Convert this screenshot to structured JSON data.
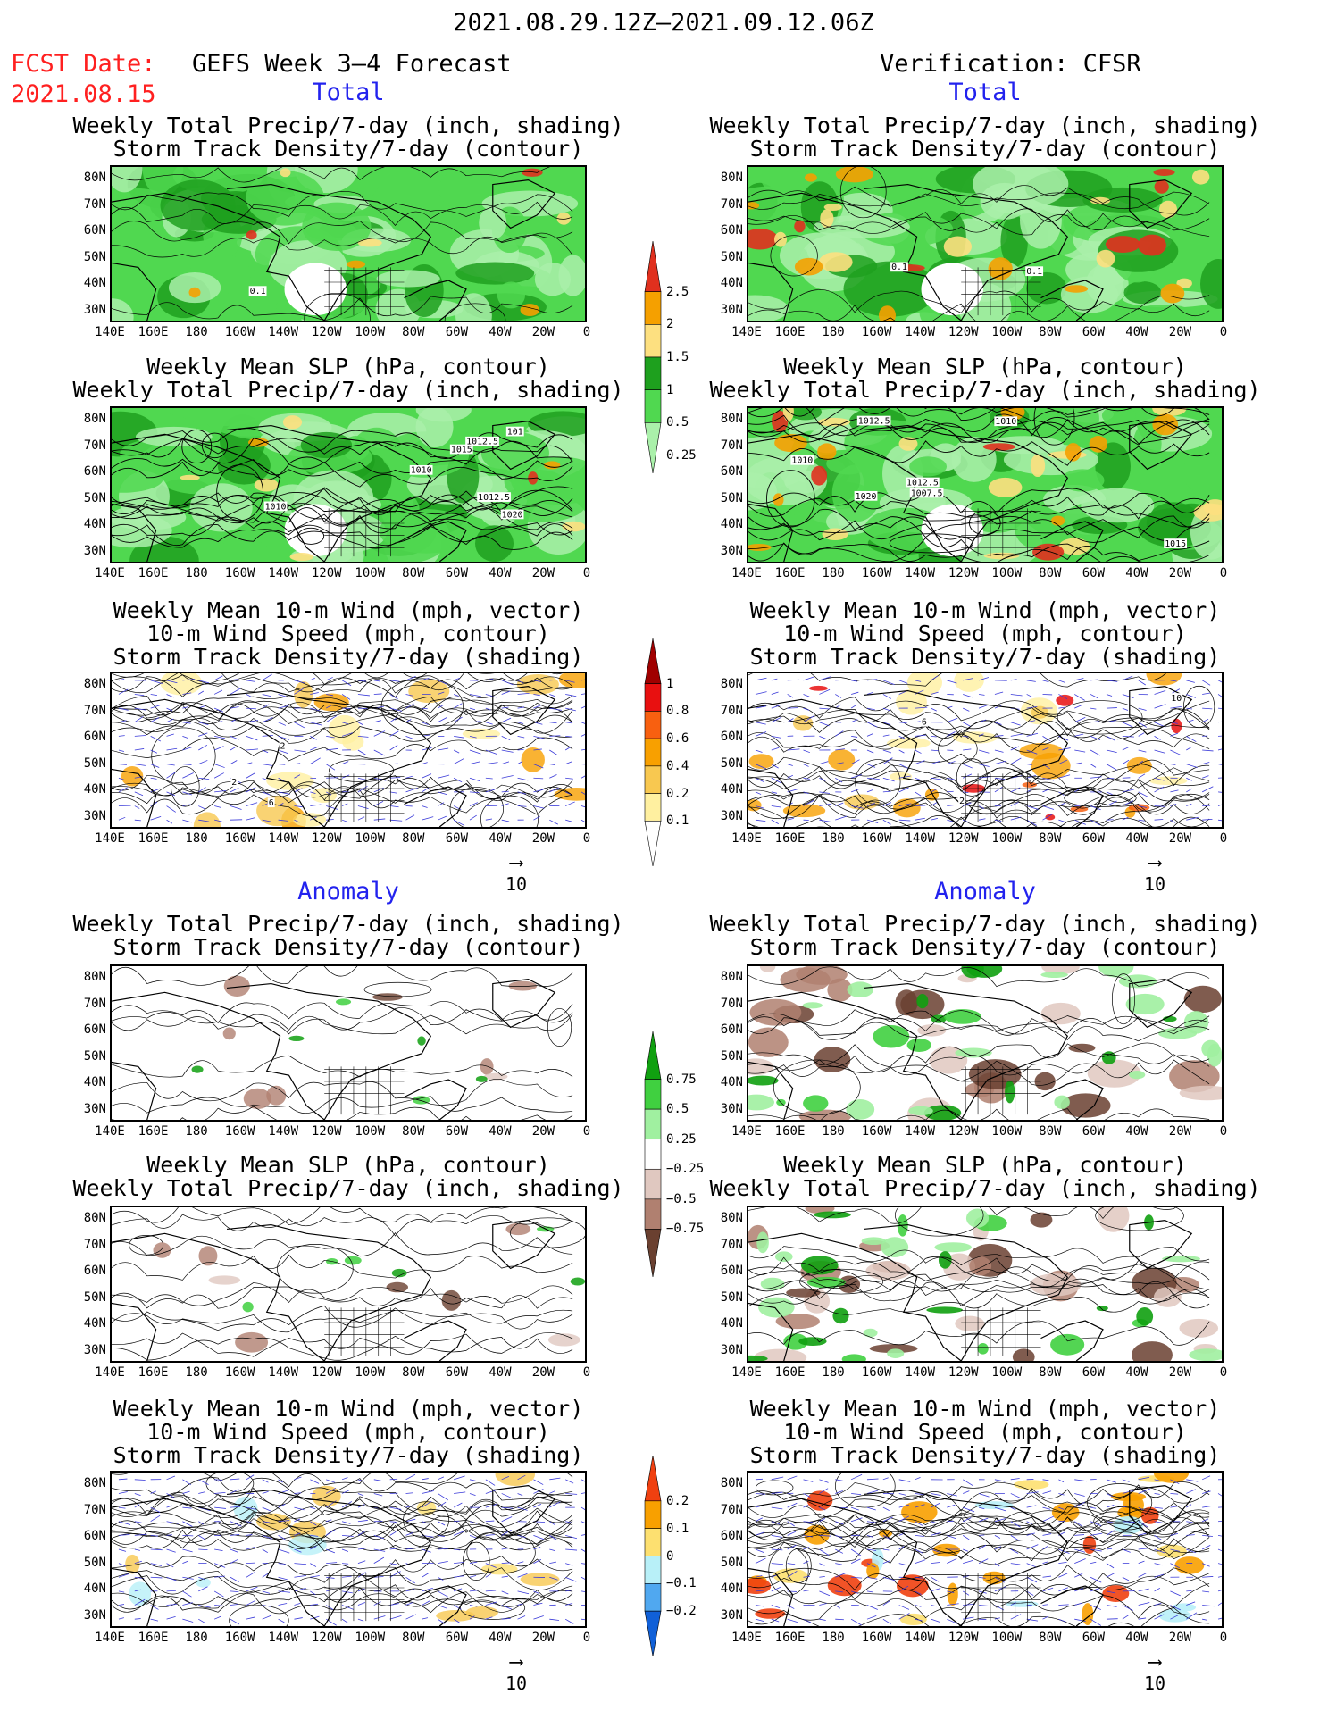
{
  "header": {
    "period": "2021.08.29.12Z–2021.09.12.06Z",
    "fcst_label": "FCST Date:",
    "fcst_date": "2021.08.15",
    "left_title": "GEFS Week 3–4 Forecast",
    "right_title": "Verification: CFSR"
  },
  "sections": {
    "total": "Total",
    "anomaly": "Anomaly"
  },
  "panels": {
    "precip_storm": [
      "Weekly Total Precip/7-day (inch, shading)",
      "Storm Track Density/7-day (contour)"
    ],
    "slp_precip": [
      "Weekly Mean SLP (hPa, contour)",
      "Weekly Total Precip/7-day (inch, shading)"
    ],
    "wind_storm": [
      "Weekly Mean 10-m Wind (mph, vector)",
      "10-m Wind Speed (mph, contour)",
      "Storm Track Density/7-day (shading)"
    ]
  },
  "axes": {
    "lat": [
      "80N",
      "70N",
      "60N",
      "50N",
      "40N",
      "30N"
    ],
    "lon": [
      "140E",
      "160E",
      "180",
      "160W",
      "140W",
      "120W",
      "100W",
      "80W",
      "60W",
      "40W",
      "20W",
      "0"
    ]
  },
  "contour_labels": {
    "fc_precip": [
      "0.1"
    ],
    "vr_precip": [
      "0.1",
      "0.1"
    ],
    "fc_slp": [
      "1010",
      "1012.5",
      "1010",
      "1012.5",
      "1015",
      "1020",
      "101"
    ],
    "vr_slp": [
      "1012.5",
      "1010",
      "1007.5",
      "1012.5",
      "1010",
      "1015",
      "1020"
    ],
    "fc_wind": [
      "2",
      "2",
      "6"
    ],
    "vr_wind": [
      "6",
      "2",
      "10"
    ]
  },
  "vector_ref": "10",
  "colorbars": {
    "precip_total": {
      "labels": [
        "2.5",
        "2",
        "1.5",
        "1",
        "0.5",
        "0.25"
      ],
      "colors": [
        "#e0301e",
        "#f5a000",
        "#fde080",
        "#1ea01e",
        "#50d850",
        "#aaf0aa"
      ]
    },
    "storm_total": {
      "labels": [
        "1",
        "0.8",
        "0.6",
        "0.4",
        "0.2",
        "0.1"
      ],
      "colors": [
        "#a00000",
        "#e81010",
        "#f86010",
        "#f8a000",
        "#f8c850",
        "#fff0a0",
        "#ffffff"
      ]
    },
    "precip_anom": {
      "labels": [
        "0.75",
        "0.5",
        "0.25",
        "−0.25",
        "−0.5",
        "−0.75"
      ],
      "colors": [
        "#10a010",
        "#40d040",
        "#a0f0a0",
        "#ffffff",
        "#e0c8c0",
        "#b08070",
        "#6a4030"
      ]
    },
    "storm_anom": {
      "labels": [
        "0.2",
        "0.1",
        "0",
        "−0.1",
        "−0.2"
      ],
      "colors": [
        "#f04010",
        "#f8a000",
        "#fde070",
        "#b8f0f8",
        "#50a8f0",
        "#1060d8"
      ]
    }
  }
}
